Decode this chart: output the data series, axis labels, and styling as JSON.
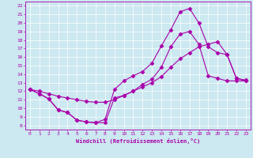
{
  "xlabel": "Windchill (Refroidissement éolien,°C)",
  "background_color": "#cce8f0",
  "line_color": "#aa00aa",
  "grid_color": "#ffffff",
  "xlim": [
    -0.5,
    23.5
  ],
  "ylim": [
    7.5,
    22.5
  ],
  "xticks": [
    0,
    1,
    2,
    3,
    4,
    5,
    6,
    7,
    8,
    9,
    10,
    11,
    12,
    13,
    14,
    15,
    16,
    17,
    18,
    19,
    20,
    21,
    22,
    23
  ],
  "yticks": [
    8,
    9,
    10,
    11,
    12,
    13,
    14,
    15,
    16,
    17,
    18,
    19,
    20,
    21,
    22
  ],
  "line1_x": [
    0,
    1,
    2,
    3,
    4,
    5,
    6,
    7,
    8,
    9,
    10,
    11,
    12,
    13,
    14,
    15,
    16,
    17,
    18,
    19,
    20,
    21,
    22,
    23
  ],
  "line1_y": [
    12.2,
    11.7,
    11.1,
    9.8,
    9.5,
    8.6,
    8.4,
    8.3,
    8.3,
    11.2,
    11.5,
    12.0,
    12.8,
    13.4,
    14.8,
    17.2,
    18.7,
    19.0,
    17.5,
    13.8,
    13.5,
    13.2,
    13.2,
    13.2
  ],
  "line2_x": [
    0,
    1,
    2,
    3,
    4,
    5,
    6,
    7,
    8,
    9,
    10,
    11,
    12,
    13,
    14,
    15,
    16,
    17,
    18,
    19,
    20,
    21,
    22,
    23
  ],
  "line2_y": [
    12.2,
    11.7,
    11.1,
    9.8,
    9.5,
    8.6,
    8.4,
    8.3,
    8.7,
    12.2,
    13.2,
    13.8,
    14.3,
    15.3,
    17.3,
    19.2,
    21.3,
    21.7,
    20.0,
    17.2,
    16.5,
    16.3,
    13.5,
    13.2
  ],
  "line3_x": [
    0,
    1,
    2,
    3,
    4,
    5,
    6,
    7,
    8,
    9,
    10,
    11,
    12,
    13,
    14,
    15,
    16,
    17,
    18,
    19,
    20,
    21,
    22,
    23
  ],
  "line3_y": [
    12.2,
    12.0,
    11.7,
    11.4,
    11.2,
    11.0,
    10.8,
    10.7,
    10.7,
    11.0,
    11.5,
    12.0,
    12.5,
    13.0,
    13.7,
    14.8,
    15.8,
    16.5,
    17.2,
    17.5,
    17.8,
    16.3,
    13.5,
    13.3
  ]
}
